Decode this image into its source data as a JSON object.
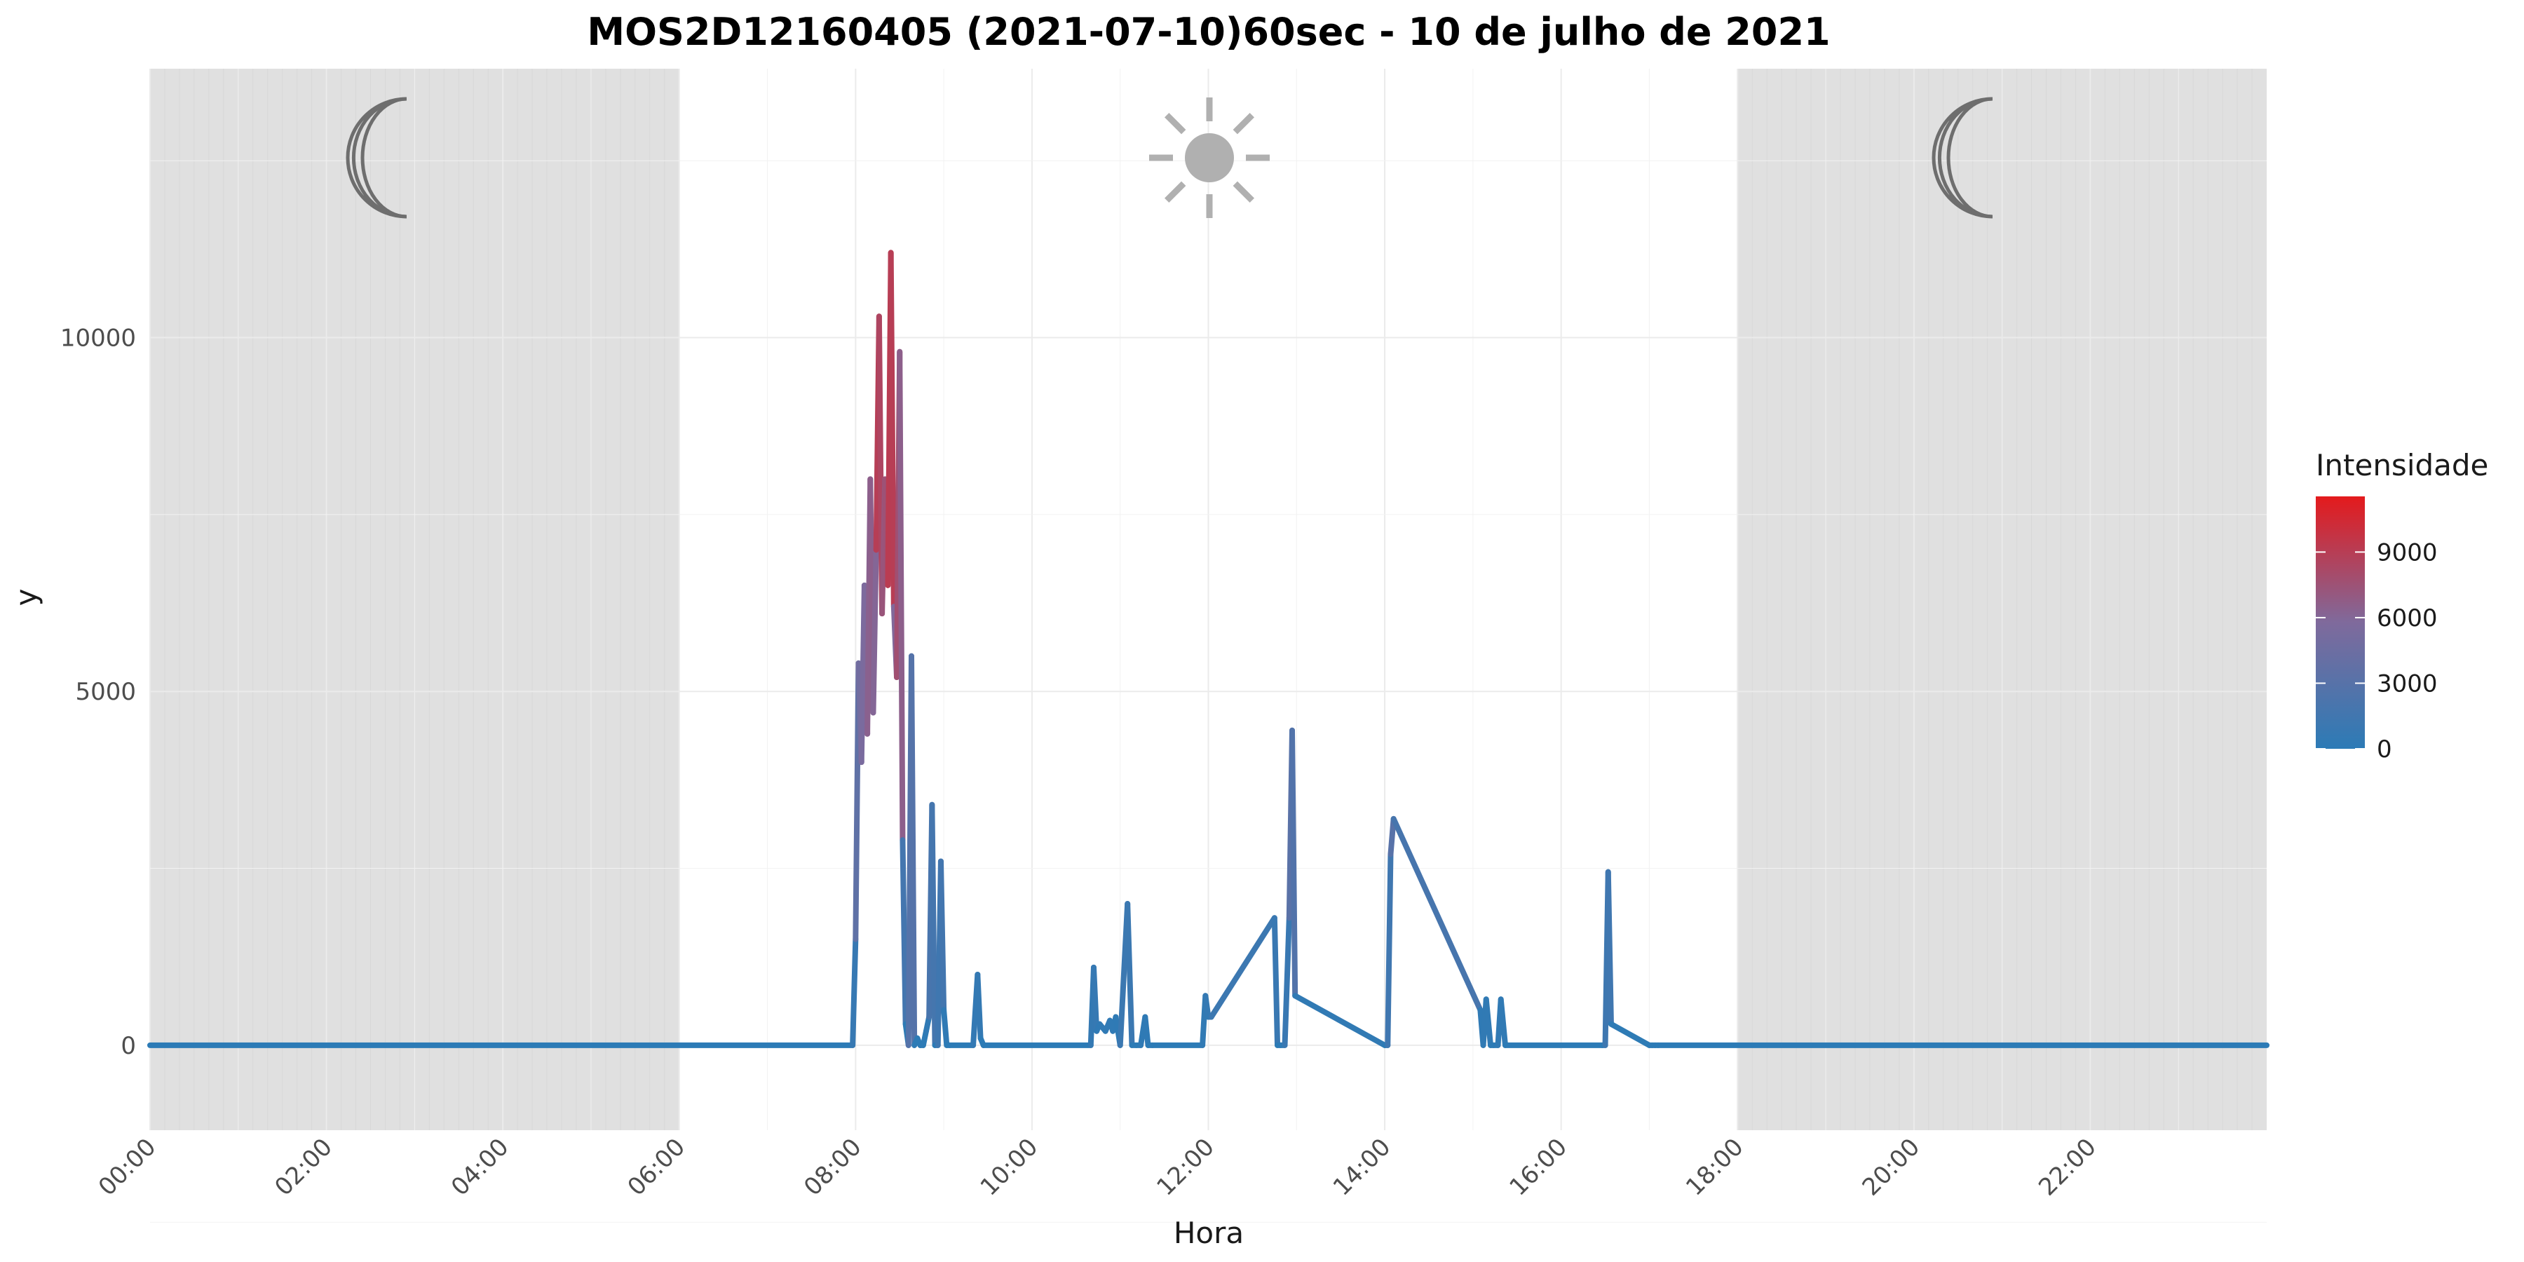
{
  "chart_data": {
    "type": "line",
    "title": "MOS2D12160405 (2021-07-10)60sec - 10 de julho de 2021",
    "xlabel": "Hora",
    "ylabel": "y",
    "xlim": [
      "00:00",
      "24:00"
    ],
    "ylim": [
      -1200,
      13800
    ],
    "y_ticks": [
      0,
      5000,
      10000
    ],
    "x_tick_labels": [
      "00:00",
      "02:00",
      "04:00",
      "06:00",
      "08:00",
      "10:00",
      "12:00",
      "14:00",
      "16:00",
      "18:00",
      "20:00",
      "22:00"
    ],
    "grid": true,
    "night_shading": [
      [
        "00:00",
        "06:00"
      ],
      [
        "18:00",
        "24:00"
      ]
    ],
    "icons": [
      "moon-icon",
      "sun-icon",
      "moon-icon"
    ],
    "colors": {
      "low": "#2c7bb6",
      "mid": "#7f6a9c",
      "high": "#e41a1c",
      "night_band": "#e0e0e0"
    },
    "legend": {
      "title": "Intensidade",
      "placement": "right",
      "ticks": [
        0,
        3000,
        6000,
        9000
      ],
      "range": [
        0,
        11200
      ]
    },
    "x": [
      "00:00",
      "07:58",
      "08:00",
      "08:02",
      "08:04",
      "08:06",
      "08:08",
      "08:10",
      "08:12",
      "08:14",
      "08:16",
      "08:18",
      "08:20",
      "08:22",
      "08:24",
      "08:26",
      "08:28",
      "08:30",
      "08:32",
      "08:34",
      "08:36",
      "08:38",
      "08:40",
      "08:42",
      "08:44",
      "08:46",
      "08:48",
      "08:50",
      "08:52",
      "08:54",
      "08:56",
      "08:58",
      "09:00",
      "09:02",
      "09:04",
      "09:20",
      "09:23",
      "09:25",
      "09:27",
      "10:40",
      "10:42",
      "10:44",
      "10:46",
      "10:50",
      "10:53",
      "10:55",
      "10:57",
      "11:00",
      "11:05",
      "11:08",
      "11:11",
      "11:14",
      "11:17",
      "11:19",
      "11:22",
      "11:56",
      "11:58",
      "12:00",
      "12:02",
      "12:45",
      "12:47",
      "12:49",
      "12:52",
      "12:55",
      "12:57",
      "12:59",
      "14:00",
      "14:02",
      "14:04",
      "14:06",
      "15:05",
      "15:07",
      "15:09",
      "15:12",
      "15:14",
      "15:17",
      "15:19",
      "15:22",
      "16:28",
      "16:30",
      "16:32",
      "16:34",
      "17:00",
      "17:02",
      "17:04",
      "17:06",
      "24:00"
    ],
    "values": [
      0,
      0,
      1500,
      5400,
      4000,
      6500,
      4400,
      8000,
      4700,
      7000,
      10300,
      6100,
      8000,
      6500,
      11200,
      6200,
      5200,
      9800,
      2900,
      300,
      0,
      5500,
      0,
      100,
      0,
      0,
      200,
      400,
      3400,
      0,
      0,
      2600,
      500,
      0,
      0,
      0,
      1000,
      100,
      0,
      0,
      1100,
      200,
      300,
      200,
      350,
      200,
      400,
      0,
      2000,
      0,
      0,
      0,
      400,
      0,
      0,
      0,
      700,
      400,
      400,
      1800,
      0,
      0,
      0,
      1800,
      4450,
      700,
      0,
      0,
      2700,
      3200,
      500,
      0,
      650,
      0,
      0,
      0,
      650,
      0,
      0,
      0,
      2450,
      300,
      0,
      0,
      0,
      0,
      0
    ]
  }
}
